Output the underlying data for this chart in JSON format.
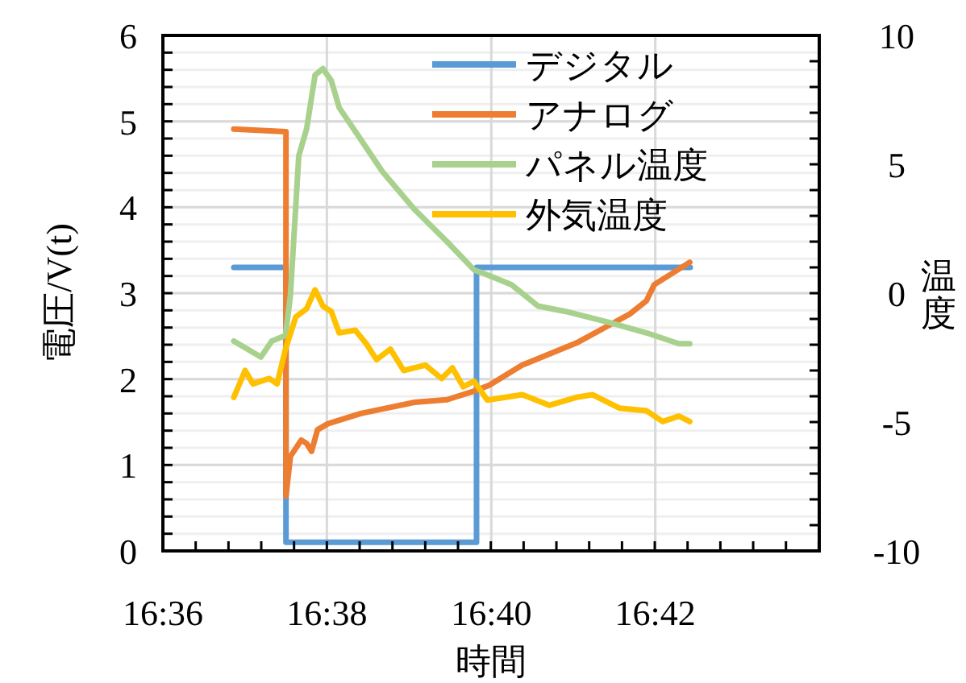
{
  "chart_data": {
    "type": "line",
    "xlabel": "時間",
    "ylabel": "電圧/V(t)",
    "y2label": "温度",
    "xlim": [
      16.6,
      16.7333
    ],
    "xticks": [
      {
        "value": 16.6,
        "label": "16:36"
      },
      {
        "value": 16.6333,
        "label": "16:38"
      },
      {
        "value": 16.6667,
        "label": "16:40"
      },
      {
        "value": 16.7,
        "label": "16:42"
      }
    ],
    "ylim": [
      0,
      6
    ],
    "yticks": [
      0,
      1,
      2,
      3,
      4,
      5,
      6
    ],
    "y2lim": [
      -10,
      10
    ],
    "y2ticks": [
      -10,
      -5,
      0,
      5,
      10
    ],
    "grid": true,
    "legend": "top right",
    "line_style": "solid",
    "marker": "none",
    "series": [
      {
        "name": "デジタル",
        "color": "#5b9bd5",
        "x": [
          16.6144,
          16.625,
          16.625,
          16.6637,
          16.6637,
          16.7071
        ],
        "values": [
          3.3,
          3.3,
          0.1,
          0.1,
          3.3,
          3.3
        ]
      },
      {
        "name": "アナログ",
        "color": "#ed7d31",
        "x": [
          16.6144,
          16.625,
          16.625,
          16.6259,
          16.6281,
          16.6292,
          16.6302,
          16.6314,
          16.6335,
          16.6402,
          16.6511,
          16.6577,
          16.6632,
          16.6663,
          16.6729,
          16.684,
          16.6949,
          16.6982,
          16.6998,
          16.707
        ],
        "values": [
          4.91,
          4.88,
          0.64,
          1.1,
          1.29,
          1.25,
          1.16,
          1.41,
          1.48,
          1.6,
          1.73,
          1.76,
          1.86,
          1.93,
          2.16,
          2.42,
          2.76,
          2.91,
          3.1,
          3.36
        ]
      },
      {
        "name": "パネル温度",
        "axis": "y2",
        "color": "#a9d18e",
        "x": [
          16.6144,
          16.6199,
          16.6221,
          16.6249,
          16.6259,
          16.6276,
          16.6292,
          16.6309,
          16.6325,
          16.6342,
          16.6358,
          16.6402,
          16.6446,
          16.6511,
          16.6577,
          16.6632,
          16.6654,
          16.6708,
          16.6762,
          16.6818,
          16.6905,
          16.6982,
          16.7048,
          16.707
        ],
        "values": [
          -1.86,
          -2.48,
          -1.86,
          -1.64,
          -0.08,
          5.33,
          6.38,
          8.46,
          8.71,
          8.25,
          7.2,
          5.96,
          4.71,
          3.25,
          2.0,
          0.9,
          0.75,
          0.33,
          -0.5,
          -0.71,
          -1.13,
          -1.54,
          -1.96,
          -1.96
        ]
      },
      {
        "name": "外気温度",
        "axis": "y2",
        "color": "#ffc000",
        "x": [
          16.6144,
          16.6167,
          16.6183,
          16.6216,
          16.6232,
          16.6249,
          16.627,
          16.6292,
          16.6309,
          16.6325,
          16.6342,
          16.6358,
          16.6391,
          16.6413,
          16.6434,
          16.6462,
          16.6489,
          16.6533,
          16.6566,
          16.6588,
          16.661,
          16.6632,
          16.6659,
          16.673,
          16.6785,
          16.684,
          16.6873,
          16.6927,
          16.6982,
          16.7015,
          16.7048,
          16.707
        ],
        "values": [
          -4.04,
          -3.0,
          -3.52,
          -3.31,
          -3.52,
          -2.17,
          -0.92,
          -0.6,
          0.13,
          -0.5,
          -0.71,
          -1.54,
          -1.44,
          -1.96,
          -2.58,
          -2.17,
          -3.0,
          -2.79,
          -3.31,
          -2.9,
          -3.63,
          -3.42,
          -4.15,
          -3.94,
          -4.35,
          -4.04,
          -3.94,
          -4.46,
          -4.56,
          -4.98,
          -4.77,
          -4.98
        ]
      }
    ]
  }
}
